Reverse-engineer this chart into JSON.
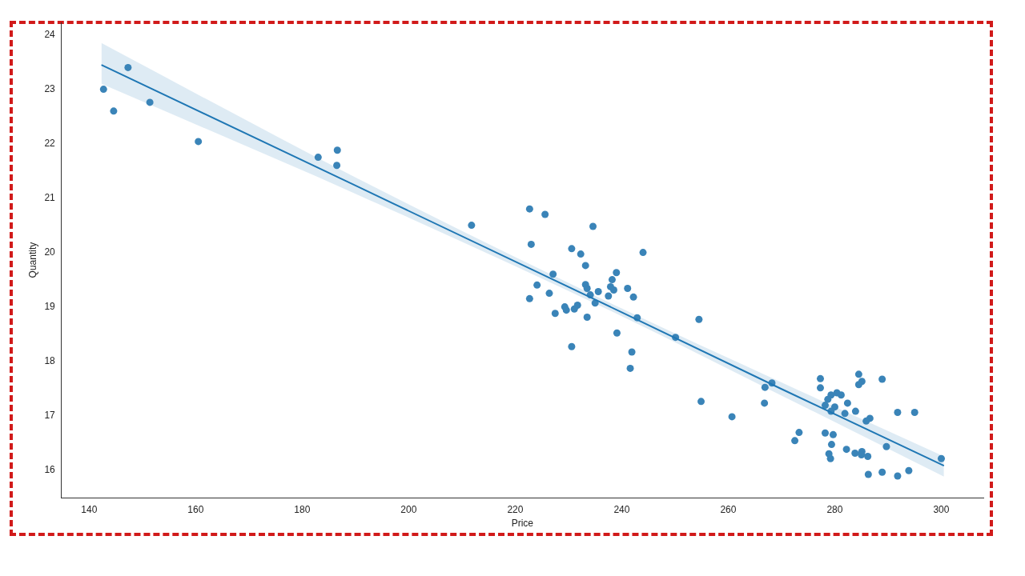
{
  "chart_data": {
    "type": "scatter",
    "xlabel": "Price",
    "ylabel": "Quantity",
    "xlim": [
      134.8,
      307.9
    ],
    "xticks": [
      140,
      160,
      180,
      200,
      220,
      240,
      260,
      280,
      300
    ],
    "ylim": [
      15.49,
      24.23
    ],
    "yticks": [
      16,
      17,
      18,
      19,
      20,
      21,
      22,
      23,
      24
    ],
    "grid": false,
    "legend": false,
    "series": [
      {
        "marker": "circle",
        "color": "#3a84b8",
        "x": [
          142.7,
          144.6,
          147.3,
          151.4,
          160.5,
          183.0,
          186.6,
          186.5,
          211.8,
          222.7,
          225.6,
          223.0,
          234.6,
          244.0,
          230.6,
          232.3,
          233.2,
          239.0,
          227.1,
          238.2,
          224.1,
          233.2,
          233.5,
          237.9,
          238.5,
          241.1,
          235.6,
          237.5,
          226.4,
          234.1,
          242.2,
          222.7,
          235.0,
          229.3,
          231.7,
          229.6,
          231.1,
          227.5,
          233.5,
          242.9,
          254.5,
          239.1,
          250.1,
          230.6,
          241.9,
          241.6,
          254.9,
          260.7,
          266.8,
          266.9,
          268.2,
          277.3,
          277.3,
          284.5,
          285.1,
          284.5,
          288.9,
          279.3,
          280.4,
          281.2,
          278.7,
          282.4,
          278.2,
          280.0,
          279.3,
          281.9,
          283.9,
          286.6,
          285.9,
          291.8,
          295.0,
          273.3,
          272.5,
          278.2,
          279.7,
          279.4,
          289.7,
          282.2,
          283.8,
          285.1,
          285.0,
          286.2,
          278.9,
          279.2,
          300.0,
          286.3,
          288.9,
          291.8,
          293.9
        ],
        "values": [
          23.0,
          22.6,
          23.4,
          22.76,
          22.04,
          21.75,
          21.88,
          21.6,
          20.5,
          20.8,
          20.7,
          20.15,
          20.48,
          20.0,
          20.07,
          19.97,
          19.76,
          19.63,
          19.6,
          19.5,
          19.4,
          19.41,
          19.34,
          19.37,
          19.31,
          19.34,
          19.28,
          19.2,
          19.25,
          19.22,
          19.18,
          19.15,
          19.07,
          19.0,
          19.03,
          18.94,
          18.96,
          18.88,
          18.81,
          18.8,
          18.77,
          18.52,
          18.44,
          18.27,
          18.17,
          17.87,
          17.26,
          16.98,
          17.23,
          17.52,
          17.6,
          17.68,
          17.51,
          17.76,
          17.63,
          17.57,
          17.67,
          17.38,
          17.42,
          17.38,
          17.3,
          17.23,
          17.19,
          17.16,
          17.08,
          17.04,
          17.08,
          16.95,
          16.9,
          17.06,
          17.06,
          16.69,
          16.54,
          16.68,
          16.65,
          16.47,
          16.43,
          16.38,
          16.31,
          16.34,
          16.28,
          16.25,
          16.3,
          16.21,
          16.21,
          15.92,
          15.96,
          15.89,
          15.99
        ]
      },
      {
        "type": "line",
        "marker": "none",
        "color": "#1f77b4",
        "x": [
          142.3,
          190,
          240,
          270,
          300.5
        ],
        "values": [
          23.45,
          21.23,
          18.9,
          17.49,
          16.08
        ],
        "lower": [
          23.1,
          21.08,
          18.83,
          17.37,
          15.88
        ],
        "upper": [
          23.85,
          21.38,
          18.97,
          17.61,
          16.25
        ]
      }
    ]
  }
}
